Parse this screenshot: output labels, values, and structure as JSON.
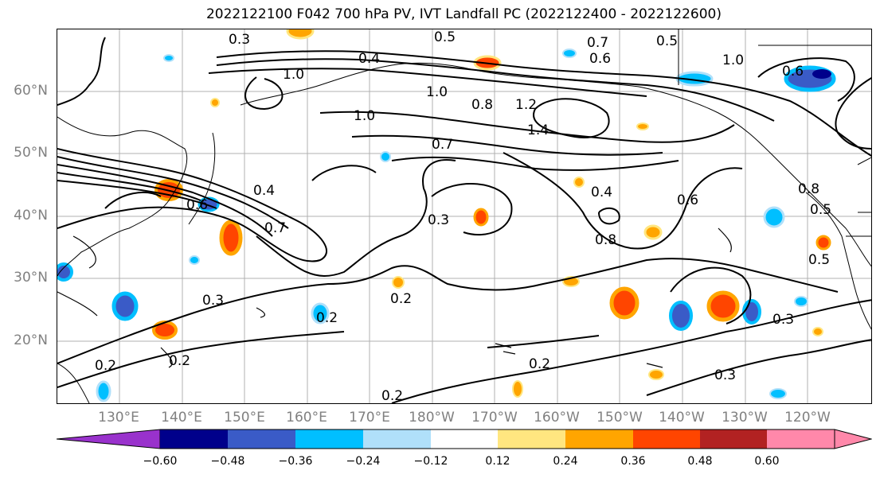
{
  "title": "2022122100 F042 700 hPa PV, IVT Landfall PC (2022122400 - 2022122600)",
  "lat_labels": [
    "60°N",
    "50°N",
    "40°N",
    "30°N",
    "20°N"
  ],
  "lon_labels": [
    "130°E",
    "140°E",
    "150°E",
    "160°E",
    "170°E",
    "180°W",
    "170°W",
    "160°W",
    "150°W",
    "140°W",
    "130°W",
    "120°W"
  ],
  "contour_labels": [
    "0.3",
    "0.5",
    "0.7",
    "0.5",
    "0.6",
    "1.0",
    "0.4",
    "1.0",
    "0.8",
    "1.2",
    "1.0",
    "0.7",
    "1.4",
    "0.4",
    "0.6",
    "0.7",
    "0.4",
    "0.3",
    "0.3",
    "0.2",
    "0.2",
    "0.2",
    "0.2",
    "0.2",
    "0.3",
    "0.3",
    "0.5",
    "0.8",
    "0.6",
    "0.6",
    "0.5",
    "1.0",
    "0.8",
    "0.2"
  ],
  "colorbar": {
    "ticks": [
      "−0.60",
      "−0.48",
      "−0.36",
      "−0.24",
      "−0.12",
      "0.12",
      "0.24",
      "0.36",
      "0.48",
      "0.60"
    ],
    "colors": [
      "#9932cc",
      "#00008b",
      "#3a5bc7",
      "#00bfff",
      "#b0e0fa",
      "#ffffff",
      "#ffe680",
      "#ffa500",
      "#ff4500",
      "#b22222",
      "#ff88aa"
    ]
  }
}
